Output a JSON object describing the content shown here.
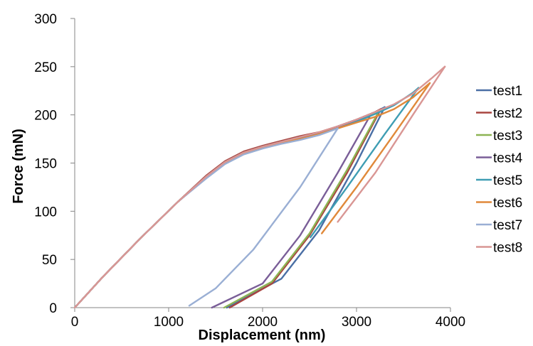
{
  "chart_data": {
    "type": "line",
    "title": "",
    "xlabel": "Displacement (nm)",
    "ylabel": "Force (mN)",
    "xlim": [
      0,
      4000
    ],
    "ylim": [
      0,
      300
    ],
    "x_ticks": [
      "0",
      "1000",
      "2000",
      "3000",
      "4000"
    ],
    "y_ticks": [
      "0",
      "50",
      "100",
      "150",
      "200",
      "250",
      "300"
    ],
    "grid": false,
    "legend_position": "right",
    "series": [
      {
        "name": "test1",
        "color": "#4A6FA5",
        "loading": [
          [
            0,
            0
          ],
          [
            300,
            32
          ],
          [
            700,
            72
          ],
          [
            1100,
            110
          ],
          [
            1400,
            135
          ],
          [
            1600,
            150
          ],
          [
            1800,
            160
          ],
          [
            2000,
            166
          ],
          [
            2200,
            171
          ],
          [
            2400,
            176
          ],
          [
            2600,
            181
          ],
          [
            2800,
            188
          ],
          [
            3000,
            195
          ],
          [
            3200,
            203
          ],
          [
            3300,
            208
          ]
        ],
        "unloading": [
          [
            3300,
            208
          ],
          [
            3000,
            150
          ],
          [
            2600,
            80
          ],
          [
            2200,
            30
          ],
          [
            1620,
            0
          ]
        ]
      },
      {
        "name": "test2",
        "color": "#A84540",
        "loading": [
          [
            0,
            0
          ],
          [
            300,
            32
          ],
          [
            700,
            72
          ],
          [
            1100,
            110
          ],
          [
            1400,
            137
          ],
          [
            1600,
            152
          ],
          [
            1800,
            162
          ],
          [
            2000,
            168
          ],
          [
            2200,
            173
          ],
          [
            2400,
            178
          ],
          [
            2600,
            182
          ],
          [
            2800,
            188
          ],
          [
            3000,
            195
          ],
          [
            3200,
            203
          ],
          [
            3260,
            206
          ]
        ],
        "unloading": [
          [
            3260,
            206
          ],
          [
            2900,
            140
          ],
          [
            2500,
            75
          ],
          [
            2100,
            25
          ],
          [
            1650,
            0
          ]
        ]
      },
      {
        "name": "test3",
        "color": "#8DB453",
        "loading": [
          [
            0,
            0
          ],
          [
            300,
            32
          ],
          [
            700,
            72
          ],
          [
            1100,
            110
          ],
          [
            1400,
            136
          ],
          [
            1600,
            151
          ],
          [
            1800,
            161
          ],
          [
            2000,
            167
          ],
          [
            2200,
            172
          ],
          [
            2400,
            177
          ],
          [
            2600,
            181
          ],
          [
            2800,
            187
          ],
          [
            3000,
            194
          ],
          [
            3200,
            202
          ],
          [
            3240,
            204
          ]
        ],
        "unloading": [
          [
            3240,
            204
          ],
          [
            2900,
            143
          ],
          [
            2500,
            77
          ],
          [
            2100,
            27
          ],
          [
            1590,
            0
          ]
        ]
      },
      {
        "name": "test4",
        "color": "#7A5E98",
        "loading": [
          [
            0,
            0
          ],
          [
            300,
            32
          ],
          [
            700,
            72
          ],
          [
            1100,
            110
          ],
          [
            1400,
            136
          ],
          [
            1600,
            151
          ],
          [
            1800,
            161
          ],
          [
            2000,
            167
          ],
          [
            2200,
            172
          ],
          [
            2400,
            177
          ],
          [
            2600,
            181
          ],
          [
            2800,
            187
          ],
          [
            3000,
            194
          ],
          [
            3150,
            200
          ]
        ],
        "unloading": [
          [
            3150,
            200
          ],
          [
            2800,
            140
          ],
          [
            2400,
            75
          ],
          [
            2000,
            25
          ],
          [
            1460,
            0
          ]
        ]
      },
      {
        "name": "test5",
        "color": "#3E9DB3",
        "loading": [
          [
            0,
            0
          ],
          [
            300,
            32
          ],
          [
            700,
            72
          ],
          [
            1100,
            110
          ],
          [
            1400,
            135
          ],
          [
            1600,
            150
          ],
          [
            1800,
            160
          ],
          [
            2000,
            166
          ],
          [
            2200,
            171
          ],
          [
            2400,
            175
          ],
          [
            2600,
            180
          ],
          [
            2800,
            186
          ],
          [
            3000,
            193
          ],
          [
            3200,
            201
          ],
          [
            3400,
            210
          ],
          [
            3600,
            223
          ],
          [
            3660,
            228
          ]
        ],
        "unloading": [
          [
            3660,
            228
          ],
          [
            3300,
            180
          ],
          [
            2900,
            125
          ],
          [
            2510,
            73
          ]
        ]
      },
      {
        "name": "test6",
        "color": "#E0893A",
        "loading": [
          [
            0,
            0
          ],
          [
            300,
            32
          ],
          [
            700,
            72
          ],
          [
            1100,
            110
          ],
          [
            1400,
            135
          ],
          [
            1600,
            150
          ],
          [
            1800,
            160
          ],
          [
            2000,
            166
          ],
          [
            2200,
            171
          ],
          [
            2400,
            175
          ],
          [
            2600,
            180
          ],
          [
            2800,
            186
          ],
          [
            3000,
            192
          ],
          [
            3200,
            198
          ],
          [
            3400,
            206
          ],
          [
            3600,
            218
          ],
          [
            3780,
            233
          ]
        ],
        "unloading": [
          [
            3780,
            233
          ],
          [
            3400,
            180
          ],
          [
            3000,
            125
          ],
          [
            2630,
            77
          ]
        ]
      },
      {
        "name": "test7",
        "color": "#9AAFD4",
        "loading": [
          [
            0,
            0
          ],
          [
            300,
            32
          ],
          [
            700,
            72
          ],
          [
            1100,
            110
          ],
          [
            1400,
            134
          ],
          [
            1600,
            149
          ],
          [
            1800,
            159
          ],
          [
            2000,
            165
          ],
          [
            2200,
            170
          ],
          [
            2400,
            174
          ],
          [
            2600,
            179
          ],
          [
            2800,
            186
          ]
        ],
        "unloading": [
          [
            2800,
            186
          ],
          [
            2400,
            125
          ],
          [
            1900,
            60
          ],
          [
            1500,
            20
          ],
          [
            1220,
            2
          ]
        ]
      },
      {
        "name": "test8",
        "color": "#D99694",
        "loading": [
          [
            0,
            0
          ],
          [
            300,
            32
          ],
          [
            700,
            72
          ],
          [
            1100,
            110
          ],
          [
            1400,
            136
          ],
          [
            1600,
            151
          ],
          [
            1800,
            161
          ],
          [
            2000,
            167
          ],
          [
            2200,
            172
          ],
          [
            2400,
            177
          ],
          [
            2600,
            182
          ],
          [
            2800,
            188
          ],
          [
            3000,
            195
          ],
          [
            3200,
            203
          ],
          [
            3400,
            211
          ],
          [
            3600,
            222
          ],
          [
            3800,
            238
          ],
          [
            3940,
            250
          ]
        ],
        "unloading": [
          [
            3940,
            250
          ],
          [
            3600,
            200
          ],
          [
            3200,
            140
          ],
          [
            2800,
            89
          ]
        ]
      }
    ]
  }
}
